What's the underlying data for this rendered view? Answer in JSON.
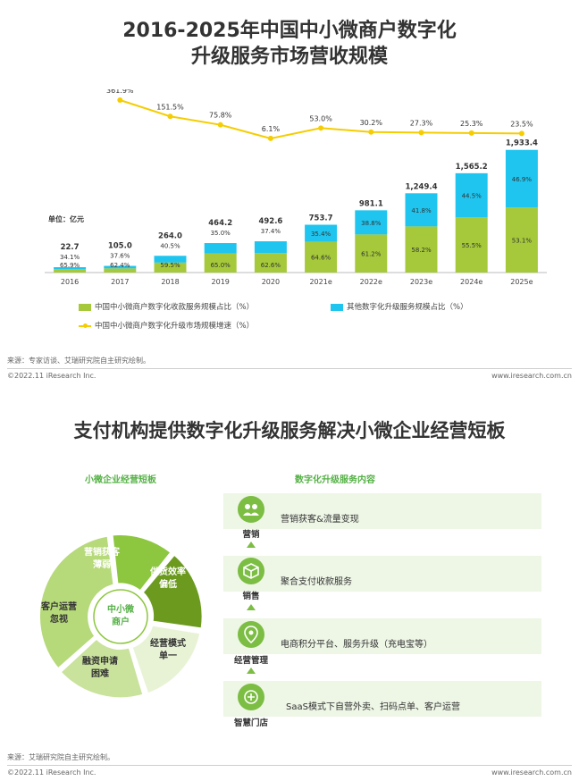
{
  "chart_title_line1": "2016-2025年中国中小微商户数字化",
  "chart_title_line2": "升级服务市场营收规模",
  "unit_label": "单位：亿元",
  "chart_data": {
    "type": "bar",
    "title": "2016-2025年中国中小微商户数字化升级服务市场营收规模",
    "categories": [
      "2016",
      "2017",
      "2018",
      "2019",
      "2020",
      "2021e",
      "2022e",
      "2023e",
      "2024e",
      "2025e"
    ],
    "totals": [
      22.7,
      105.0,
      264.0,
      464.2,
      492.6,
      753.7,
      981.1,
      1249.4,
      1565.2,
      1933.4
    ],
    "total_labels": [
      "22.7",
      "105.0",
      "264.0",
      "464.2",
      "492.6",
      "753.7",
      "981.1",
      "1,249.4",
      "1,565.2",
      "1,933.4"
    ],
    "series": [
      {
        "name": "中国中小微商户数字化收款服务规模占比（%）",
        "color": "#a5c93a",
        "values": [
          65.9,
          62.4,
          59.5,
          65.0,
          62.6,
          64.6,
          61.2,
          58.2,
          55.5,
          53.1
        ],
        "labels": [
          "65.9%",
          "62.4%",
          "59.5%",
          "65.0%",
          "62.6%",
          "64.6%",
          "61.2%",
          "58.2%",
          "55.5%",
          "53.1%"
        ]
      },
      {
        "name": "其他数字化升级服务规模占比（%）",
        "color": "#1fc5ef",
        "values": [
          34.1,
          37.6,
          40.5,
          35.0,
          37.4,
          35.4,
          38.8,
          41.8,
          44.5,
          46.9
        ],
        "labels": [
          "34.1%",
          "37.6%",
          "40.5%",
          "35.0%",
          "37.4%",
          "35.4%",
          "38.8%",
          "41.8%",
          "44.5%",
          "46.9%"
        ]
      },
      {
        "name": "中国中小微商户数字化升级市场规模增速（%）",
        "type": "line",
        "color": "#f5cd00",
        "values": [
          null,
          361.9,
          151.5,
          75.8,
          6.1,
          53.0,
          30.2,
          27.3,
          25.3,
          23.5
        ],
        "labels": [
          "",
          "361.9%",
          "151.5%",
          "75.8%",
          "6.1%",
          "53.0%",
          "30.2%",
          "27.3%",
          "25.3%",
          "23.5%"
        ]
      }
    ],
    "ylim": [
      0,
      2000
    ]
  },
  "source1": "来源：专家访谈、艾瑞研究院自主研究绘制。",
  "copyright": "©2022.11 iResearch Inc.",
  "website": "www.iresearch.com.cn",
  "section2_title": "支付机构提供数字化升级服务解决小微企业经营短板",
  "left_heading": "小微企业经营短板",
  "right_heading": "数字化升级服务内容",
  "pie": {
    "center_label_line1": "中小微",
    "center_label_line2": "商户",
    "segments": [
      {
        "line1": "营销获客",
        "line2": "薄弱",
        "color": "#8dc63f"
      },
      {
        "line1": "供货效率",
        "line2": "偏低",
        "color": "#6b9a1f"
      },
      {
        "line1": "经营模式",
        "line2": "单一",
        "color": "#e8f3d6"
      },
      {
        "line1": "融资申请",
        "line2": "困难",
        "color": "#c9e29c"
      },
      {
        "line1": "客户运营",
        "line2": "忽视",
        "color": "#b6d97a"
      }
    ]
  },
  "services": [
    {
      "icon": "people-icon",
      "label": "营销",
      "text": "营销获客&流量变现"
    },
    {
      "icon": "box-icon",
      "label": "销售",
      "text": "聚合支付收款服务"
    },
    {
      "icon": "location-pin-icon",
      "label": "经营管理",
      "text": "电商积分平台、服务升级（充电宝等）"
    },
    {
      "icon": "store-icon",
      "label": "智慧门店",
      "text": "SaaS模式下自营外卖、扫码点单、客户运营"
    }
  ],
  "source2": "来源：艾瑞研究院自主研究绘制。"
}
